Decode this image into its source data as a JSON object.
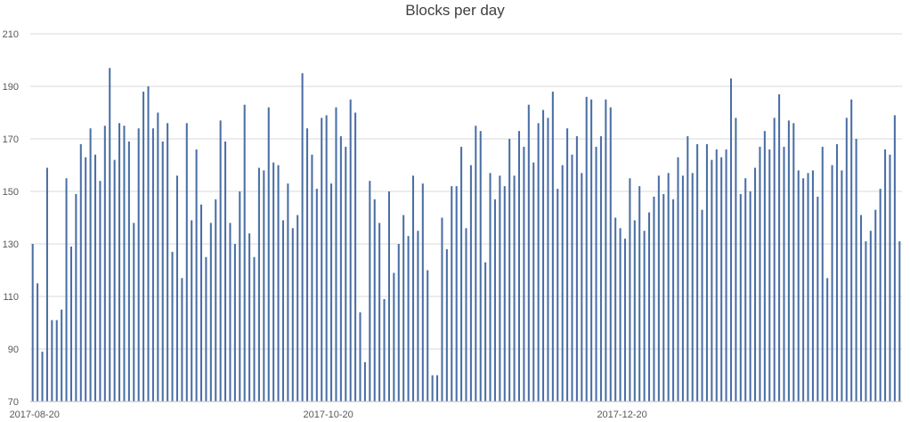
{
  "chart_data": {
    "type": "bar",
    "title": "Blocks per day",
    "xlabel": "",
    "ylabel": "",
    "ylim": [
      70,
      210
    ],
    "yticks": [
      70,
      90,
      110,
      130,
      150,
      170,
      190,
      210
    ],
    "grid": true,
    "legend": "none",
    "bar_color": "#4a6fa5",
    "x_tick_labels": [
      {
        "index": 0,
        "label": "2017-08-20"
      },
      {
        "index": 61,
        "label": "2017-10-20"
      },
      {
        "index": 122,
        "label": "2017-12-20"
      }
    ],
    "values": [
      130,
      115,
      89,
      159,
      101,
      101,
      105,
      155,
      129,
      149,
      168,
      163,
      174,
      164,
      154,
      175,
      197,
      162,
      176,
      175,
      169,
      138,
      174,
      188,
      190,
      174,
      180,
      169,
      176,
      127,
      156,
      117,
      176,
      139,
      166,
      145,
      125,
      138,
      147,
      177,
      169,
      138,
      130,
      150,
      183,
      134,
      125,
      159,
      158,
      182,
      161,
      160,
      139,
      153,
      136,
      141,
      195,
      174,
      164,
      151,
      178,
      179,
      153,
      182,
      171,
      167,
      185,
      180,
      104,
      85,
      154,
      147,
      138,
      109,
      150,
      119,
      130,
      141,
      133,
      156,
      135,
      153,
      120,
      80,
      80,
      140,
      128,
      152,
      152,
      167,
      136,
      160,
      175,
      173,
      123,
      157,
      147,
      156,
      152,
      170,
      156,
      173,
      167,
      183,
      161,
      176,
      181,
      178,
      188,
      151,
      160,
      174,
      164,
      171,
      157,
      186,
      185,
      167,
      171,
      185,
      182,
      140,
      136,
      132,
      155,
      139,
      152,
      135,
      142,
      148,
      156,
      149,
      157,
      147,
      163,
      156,
      171,
      157,
      168,
      143,
      168,
      162,
      166,
      163,
      166,
      193,
      178,
      149,
      155,
      150,
      159,
      167,
      173,
      166,
      178,
      187,
      167,
      177,
      176,
      158,
      155,
      157,
      158,
      148,
      167,
      117,
      160,
      168,
      158,
      178,
      185,
      170,
      141,
      131,
      135,
      143,
      151,
      166,
      164,
      179,
      131
    ]
  }
}
